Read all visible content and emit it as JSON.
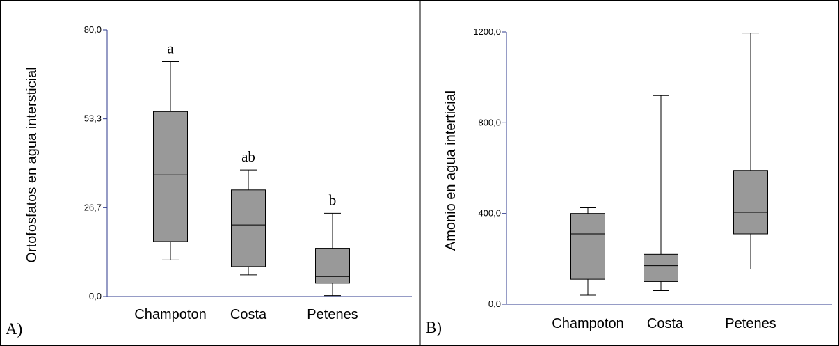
{
  "chart_data": [
    {
      "panel_label": "A)",
      "type": "box",
      "ylabel": "Ortofosfatos en agua intersticial",
      "ylim": [
        0,
        80
      ],
      "yticks": [
        "0,0",
        "26,7",
        "53,3",
        "80,0"
      ],
      "categories": [
        "Champoton",
        "Costa",
        "Petenes"
      ],
      "boxes": [
        {
          "category": "Champoton",
          "min": 11,
          "q1": 16.5,
          "median": 36.5,
          "q3": 55.5,
          "max": 70.5,
          "letter": "a"
        },
        {
          "category": "Costa",
          "min": 6.5,
          "q1": 9,
          "median": 21.5,
          "q3": 32,
          "max": 38,
          "letter": "ab"
        },
        {
          "category": "Petenes",
          "min": 0.3,
          "q1": 4,
          "median": 6,
          "q3": 14.5,
          "max": 25,
          "letter": "b"
        }
      ]
    },
    {
      "panel_label": "B)",
      "type": "box",
      "ylabel": "Amonio en agua interticial",
      "ylim": [
        0,
        1200
      ],
      "yticks": [
        "0,0",
        "400,0",
        "800,0",
        "1200,0"
      ],
      "categories": [
        "Champoton",
        "Costa",
        "Petenes"
      ],
      "boxes": [
        {
          "category": "Champoton",
          "min": 40,
          "q1": 110,
          "median": 310,
          "q3": 400,
          "max": 425
        },
        {
          "category": "Costa",
          "min": 60,
          "q1": 100,
          "median": 170,
          "q3": 220,
          "max": 920
        },
        {
          "category": "Petenes",
          "min": 155,
          "q1": 310,
          "median": 405,
          "q3": 590,
          "max": 1195
        }
      ]
    }
  ],
  "colors": {
    "box_fill": "#999999",
    "axis": "#2e3a8c",
    "frame": "#000000"
  }
}
